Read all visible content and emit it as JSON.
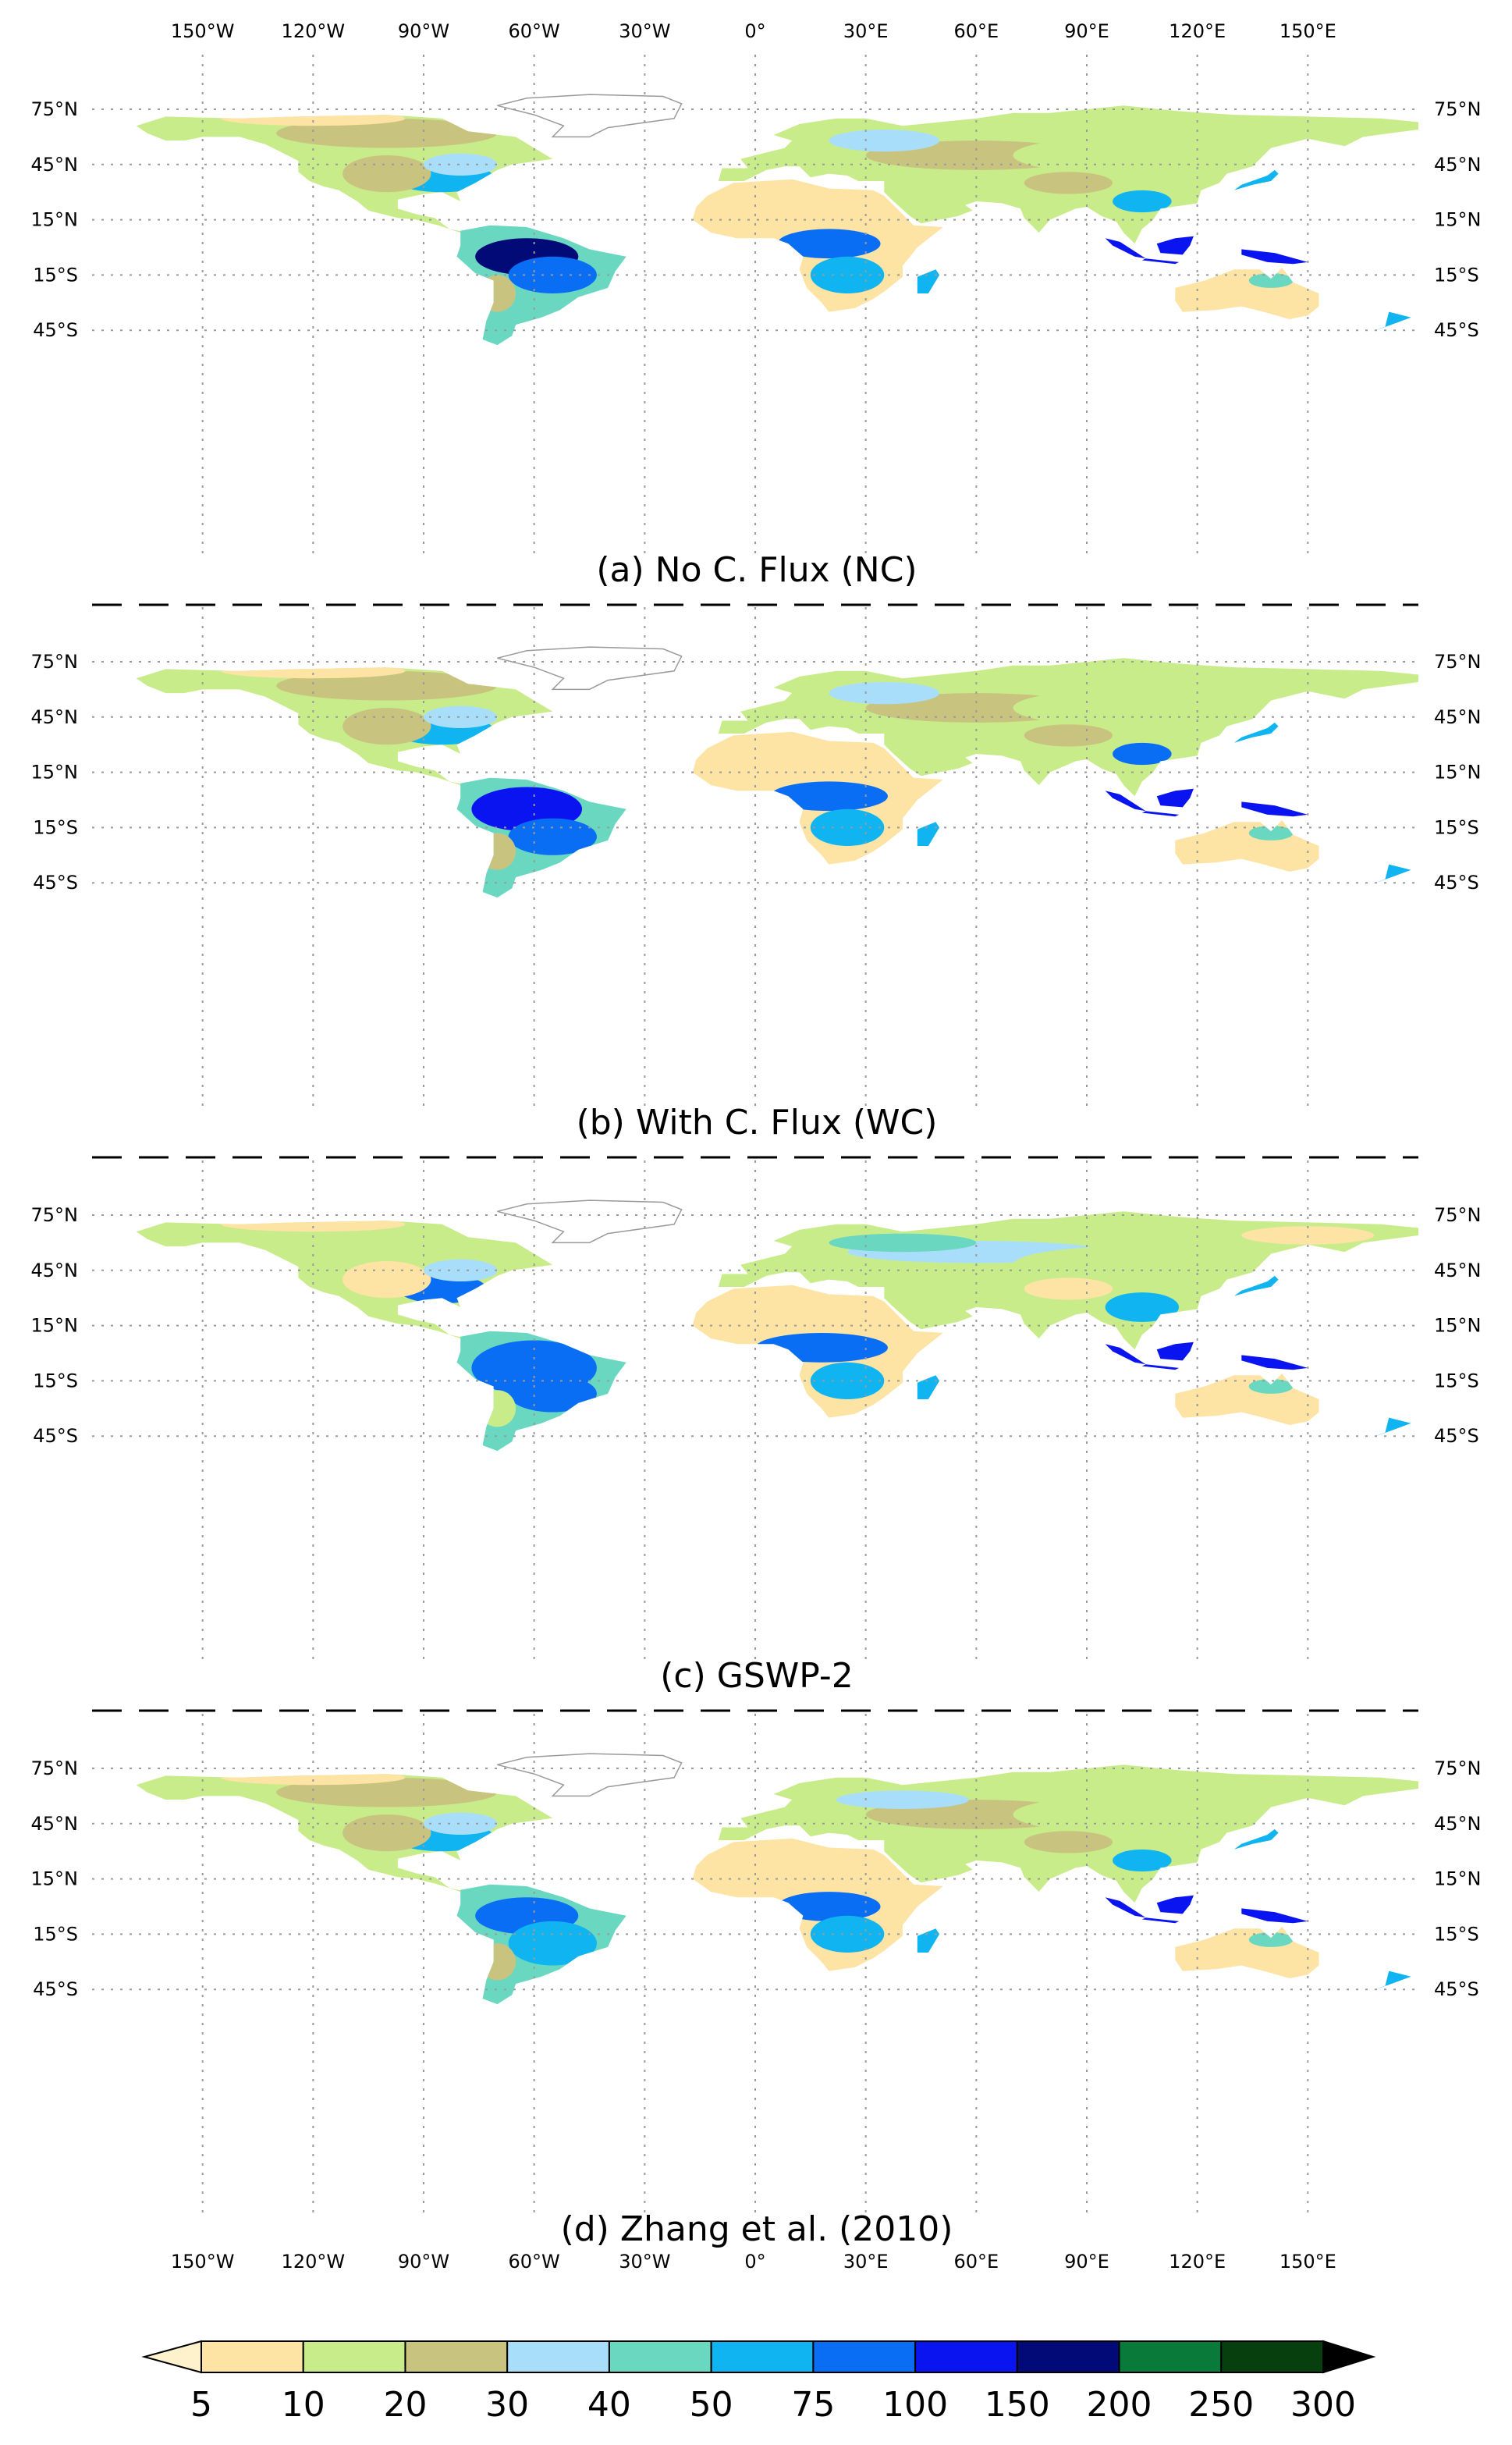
{
  "lon_labels": [
    "150°W",
    "120°W",
    "90°W",
    "60°W",
    "30°W",
    "0°",
    "30°E",
    "60°E",
    "90°E",
    "120°E",
    "150°E"
  ],
  "lat_labels": [
    "75°N",
    "45°N",
    "15°N",
    "15°S",
    "45°S"
  ],
  "panels": [
    {
      "title": "(a) No C. Flux (NC)"
    },
    {
      "title": "(b) With C. Flux (WC)"
    },
    {
      "title": "(c) GSWP-2"
    },
    {
      "title": "(d) Zhang et al. (2010)"
    }
  ],
  "colorbar": {
    "ticks": [
      "5",
      "10",
      "20",
      "30",
      "40",
      "50",
      "75",
      "100",
      "150",
      "200",
      "250",
      "300"
    ],
    "colors": [
      "#fde3a4",
      "#c9ec8b",
      "#c8c47f",
      "#a9defb",
      "#6ad8c0",
      "#0fb4f0",
      "#0a6ef5",
      "#0a14f0",
      "#020a78",
      "#0a7a3a",
      "#07400e"
    ],
    "under_color": "#fdf2cc",
    "over_color": "#000000"
  },
  "palette": {
    "ice_outline": "#9a9a9a",
    "border": "#808080"
  }
}
